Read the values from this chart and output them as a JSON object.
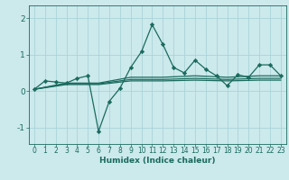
{
  "xlabel": "Humidex (Indice chaleur)",
  "ylabel": "",
  "xlim": [
    -0.5,
    23.5
  ],
  "ylim": [
    -1.45,
    2.35
  ],
  "yticks": [
    -1,
    0,
    1,
    2
  ],
  "xticks": [
    0,
    1,
    2,
    3,
    4,
    5,
    6,
    7,
    8,
    9,
    10,
    11,
    12,
    13,
    14,
    15,
    16,
    17,
    18,
    19,
    20,
    21,
    22,
    23
  ],
  "bg_color": "#cce9ec",
  "line_color": "#1a6b5e",
  "grid_color": "#aad4d8",
  "lines": [
    {
      "x": [
        0,
        1,
        2,
        3,
        4,
        5,
        6,
        7,
        8,
        9,
        10,
        11,
        12,
        13,
        14,
        15,
        16,
        17,
        18,
        19,
        20,
        21,
        22,
        23
      ],
      "y": [
        0.05,
        0.28,
        0.25,
        0.22,
        0.35,
        0.42,
        -1.1,
        -0.28,
        0.08,
        0.65,
        1.08,
        1.82,
        1.28,
        0.65,
        0.5,
        0.85,
        0.6,
        0.42,
        0.15,
        0.45,
        0.38,
        0.72,
        0.72,
        0.42
      ],
      "marker": true
    },
    {
      "x": [
        0,
        3,
        6,
        9,
        12,
        15,
        18,
        21,
        23
      ],
      "y": [
        0.05,
        0.22,
        0.22,
        0.38,
        0.38,
        0.42,
        0.38,
        0.42,
        0.42
      ],
      "marker": false
    },
    {
      "x": [
        0,
        3,
        6,
        9,
        12,
        15,
        18,
        21,
        23
      ],
      "y": [
        0.05,
        0.2,
        0.2,
        0.32,
        0.32,
        0.35,
        0.32,
        0.35,
        0.35
      ],
      "marker": false
    },
    {
      "x": [
        0,
        3,
        6,
        9,
        12,
        15,
        18,
        21,
        23
      ],
      "y": [
        0.05,
        0.18,
        0.18,
        0.28,
        0.28,
        0.3,
        0.28,
        0.3,
        0.3
      ],
      "marker": false
    }
  ]
}
